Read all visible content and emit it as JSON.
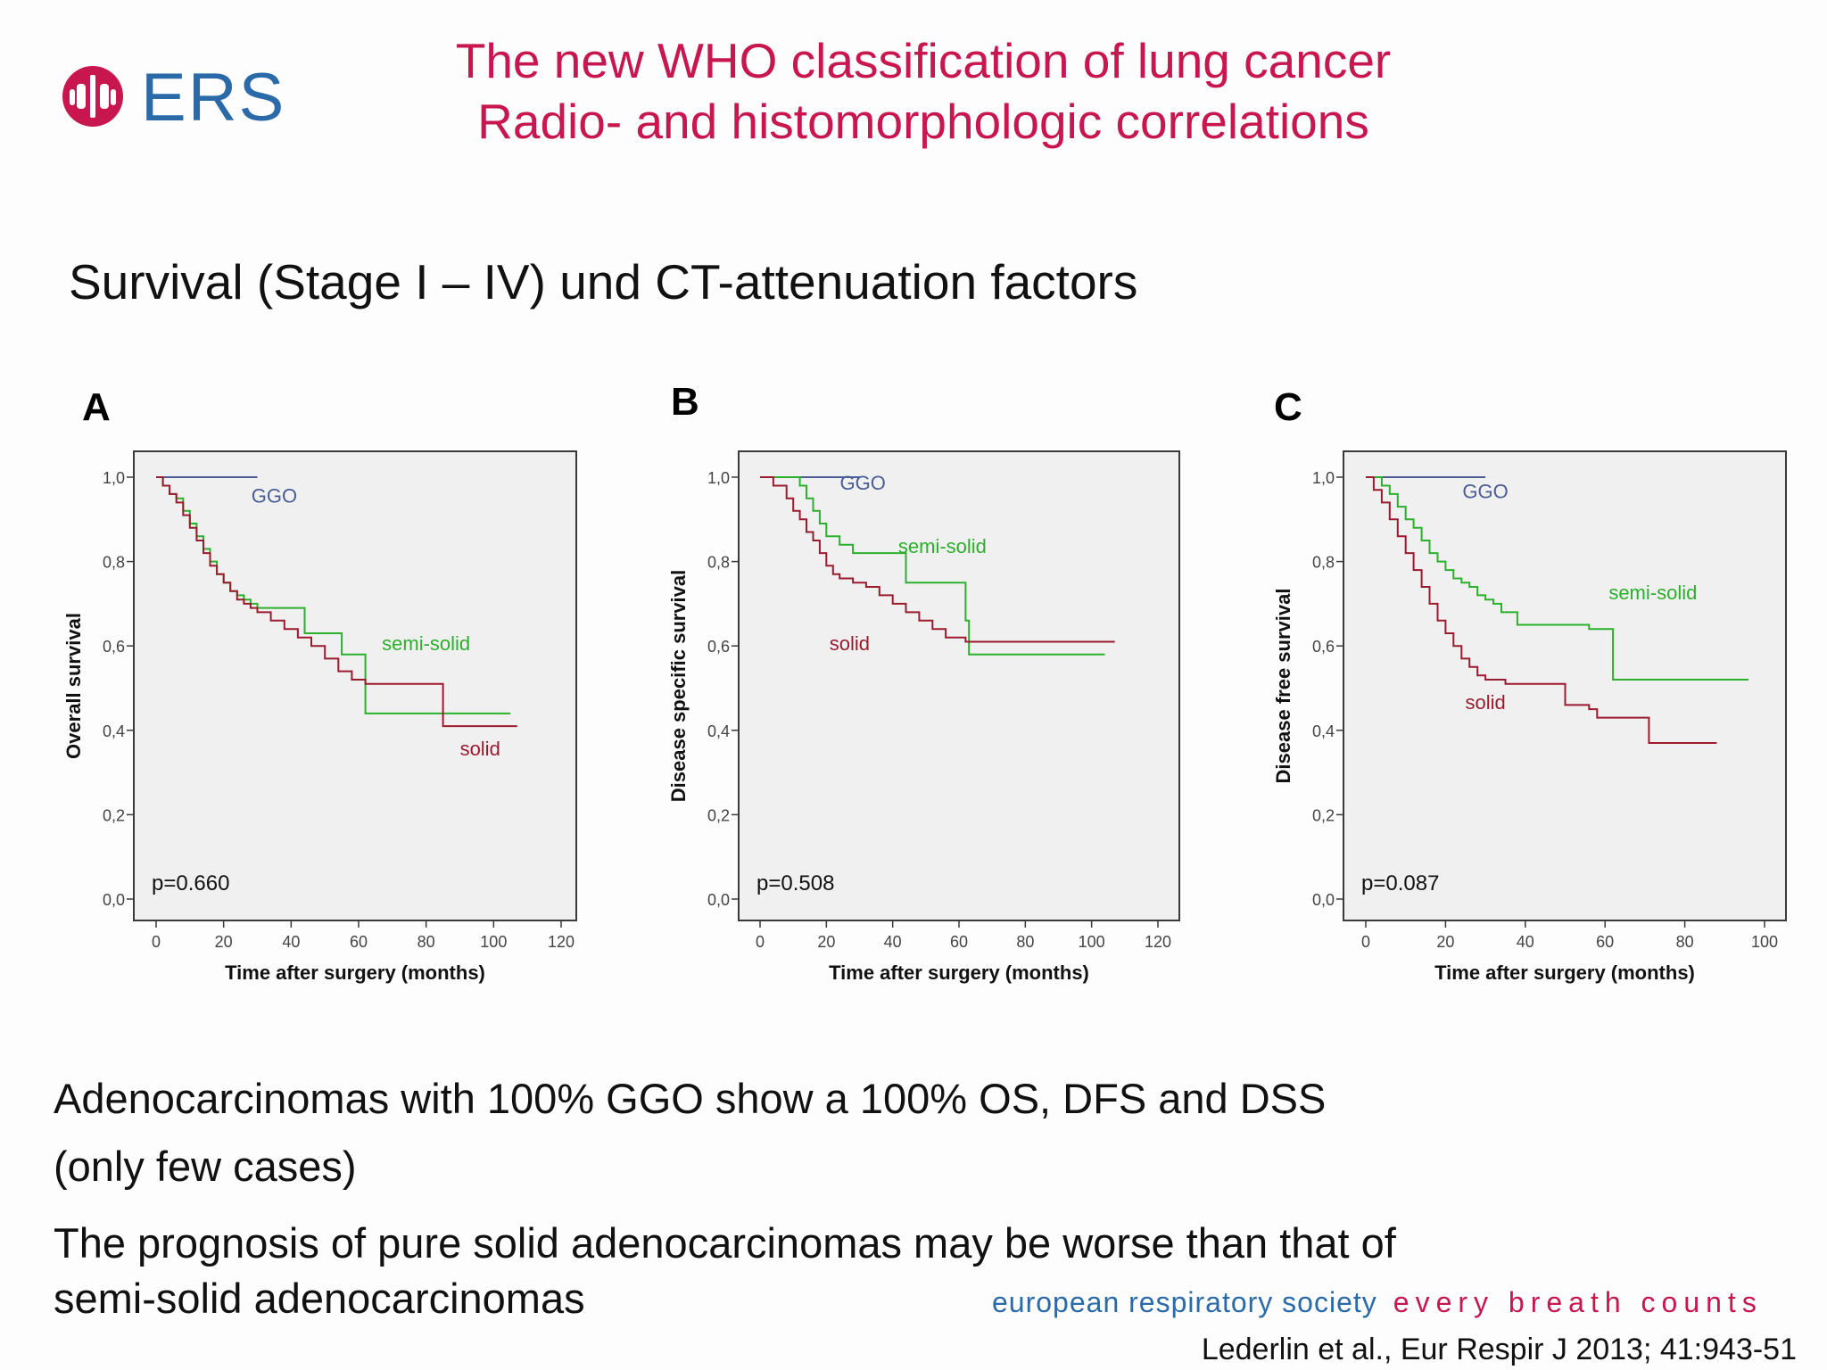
{
  "header": {
    "logo_text": "ERS",
    "title_line1": "The new WHO classification of lung cancer",
    "title_line2": "Radio- and histomorphologic correlations",
    "subtitle": "Survival (Stage I – IV) und CT-attenuation factors"
  },
  "colors": {
    "title": "#c8174e",
    "ggo": "#4a5d96",
    "semi_solid": "#2bb02b",
    "solid": "#9b1b2e",
    "ers_blue": "#2b6aa8"
  },
  "chart_data": [
    {
      "type": "line",
      "panel": "A",
      "ylabel": "Overall survival",
      "xlabel": "Time after surgery (months)",
      "xlim": [
        0,
        120
      ],
      "ylim": [
        0,
        1
      ],
      "x_ticks": [
        "0",
        "20",
        "40",
        "60",
        "80",
        "100",
        "120"
      ],
      "y_ticks": [
        "0,0",
        "0,2",
        "0,4",
        "0,6",
        "0,8",
        "1,0"
      ],
      "p_value": "p=0.660",
      "series": [
        {
          "name": "GGO",
          "color": "#4a5d96",
          "label_at": [
            35,
            0.94
          ],
          "x": [
            0,
            30
          ],
          "y": [
            1.0,
            1.0
          ]
        },
        {
          "name": "semi-solid",
          "color": "#2bb02b",
          "label_at": [
            80,
            0.59
          ],
          "x": [
            0,
            2,
            4,
            6,
            8,
            10,
            12,
            14,
            16,
            18,
            20,
            22,
            24,
            26,
            28,
            30,
            44,
            44,
            55,
            55,
            62,
            62,
            105
          ],
          "y": [
            1.0,
            0.98,
            0.96,
            0.95,
            0.92,
            0.89,
            0.86,
            0.83,
            0.8,
            0.77,
            0.75,
            0.73,
            0.72,
            0.71,
            0.7,
            0.69,
            0.69,
            0.63,
            0.63,
            0.58,
            0.58,
            0.44,
            0.44
          ]
        },
        {
          "name": "solid",
          "color": "#9b1b2e",
          "label_at": [
            96,
            0.34
          ],
          "x": [
            0,
            2,
            4,
            6,
            8,
            10,
            12,
            14,
            16,
            18,
            20,
            22,
            24,
            26,
            28,
            30,
            34,
            38,
            42,
            46,
            50,
            54,
            58,
            62,
            85,
            85,
            107
          ],
          "y": [
            1.0,
            0.98,
            0.96,
            0.94,
            0.91,
            0.88,
            0.85,
            0.82,
            0.79,
            0.77,
            0.75,
            0.73,
            0.71,
            0.7,
            0.69,
            0.68,
            0.66,
            0.64,
            0.62,
            0.6,
            0.57,
            0.54,
            0.52,
            0.51,
            0.51,
            0.41,
            0.41
          ]
        }
      ]
    },
    {
      "type": "line",
      "panel": "B",
      "ylabel": "Disease specific survival",
      "xlabel": "Time after surgery (months)",
      "xlim": [
        0,
        120
      ],
      "ylim": [
        0,
        1
      ],
      "x_ticks": [
        "0",
        "20",
        "40",
        "60",
        "80",
        "100",
        "120"
      ],
      "y_ticks": [
        "0,0",
        "0,2",
        "0,4",
        "0,6",
        "0,8",
        "1,0"
      ],
      "p_value": "p=0.508",
      "series": [
        {
          "name": "GGO",
          "color": "#4a5d96",
          "label_at": [
            31,
            0.97
          ],
          "x": [
            0,
            30
          ],
          "y": [
            1.0,
            1.0
          ]
        },
        {
          "name": "semi-solid",
          "color": "#2bb02b",
          "label_at": [
            55,
            0.82
          ],
          "x": [
            0,
            12,
            14,
            16,
            18,
            20,
            24,
            28,
            42,
            44,
            44,
            62,
            62,
            63,
            63,
            104
          ],
          "y": [
            1.0,
            0.98,
            0.95,
            0.92,
            0.89,
            0.86,
            0.84,
            0.82,
            0.82,
            0.8,
            0.75,
            0.75,
            0.66,
            0.66,
            0.58,
            0.58
          ]
        },
        {
          "name": "solid",
          "color": "#9b1b2e",
          "label_at": [
            27,
            0.59
          ],
          "x": [
            0,
            4,
            8,
            10,
            12,
            14,
            16,
            18,
            20,
            22,
            24,
            28,
            32,
            36,
            40,
            44,
            48,
            52,
            56,
            60,
            62,
            107
          ],
          "y": [
            1.0,
            0.98,
            0.95,
            0.92,
            0.9,
            0.87,
            0.85,
            0.82,
            0.79,
            0.77,
            0.76,
            0.75,
            0.74,
            0.72,
            0.7,
            0.68,
            0.66,
            0.64,
            0.62,
            0.62,
            0.61,
            0.61
          ]
        }
      ]
    },
    {
      "type": "line",
      "panel": "C",
      "ylabel": "Disease free survival",
      "xlabel": "Time after surgery (months)",
      "xlim": [
        0,
        100
      ],
      "ylim": [
        0,
        1
      ],
      "x_ticks": [
        "0",
        "20",
        "40",
        "60",
        "80",
        "100"
      ],
      "y_ticks": [
        "0,0",
        "0,2",
        "0,4",
        "0,6",
        "0,8",
        "1,0"
      ],
      "p_value": "p=0.087",
      "series": [
        {
          "name": "GGO",
          "color": "#4a5d96",
          "label_at": [
            30,
            0.95
          ],
          "x": [
            0,
            30
          ],
          "y": [
            1.0,
            1.0
          ]
        },
        {
          "name": "semi-solid",
          "color": "#2bb02b",
          "label_at": [
            72,
            0.71
          ],
          "x": [
            0,
            4,
            6,
            8,
            10,
            12,
            14,
            16,
            18,
            20,
            22,
            24,
            26,
            28,
            30,
            32,
            34,
            38,
            56,
            56,
            62,
            62,
            96
          ],
          "y": [
            1.0,
            0.98,
            0.96,
            0.93,
            0.9,
            0.88,
            0.85,
            0.82,
            0.8,
            0.78,
            0.76,
            0.75,
            0.74,
            0.72,
            0.71,
            0.7,
            0.68,
            0.65,
            0.65,
            0.64,
            0.64,
            0.52,
            0.52
          ]
        },
        {
          "name": "solid",
          "color": "#9b1b2e",
          "label_at": [
            30,
            0.45
          ],
          "x": [
            0,
            2,
            4,
            6,
            8,
            10,
            12,
            14,
            16,
            18,
            20,
            22,
            24,
            26,
            28,
            30,
            35,
            40,
            48,
            50,
            56,
            58,
            70,
            71,
            88
          ],
          "y": [
            1.0,
            0.97,
            0.94,
            0.9,
            0.86,
            0.82,
            0.78,
            0.74,
            0.7,
            0.66,
            0.63,
            0.6,
            0.57,
            0.55,
            0.53,
            0.52,
            0.51,
            0.51,
            0.51,
            0.46,
            0.45,
            0.43,
            0.43,
            0.37,
            0.37
          ]
        }
      ]
    }
  ],
  "body": {
    "bullet1_line1": "Adenocarcinomas  with 100% GGO show a 100% OS, DFS and DSS",
    "bullet1_line2": "(only few cases)",
    "bullet2_line1": "The prognosis  of pure solid adenocarcinomas  may be worse than that of",
    "bullet2_line2": "semi-solid  adenocarcinomas"
  },
  "footer": {
    "society": "european respiratory society",
    "tagline": "every breath counts",
    "citation": "Lederlin et al., Eur Respir J  2013; 41:943-51"
  }
}
